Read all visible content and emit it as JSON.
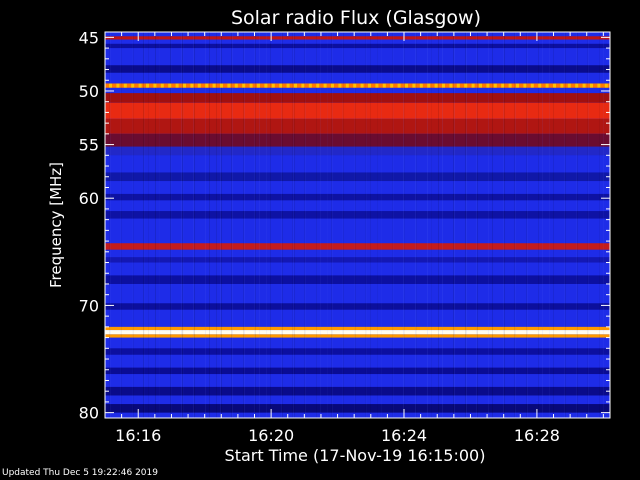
{
  "chart_data": {
    "type": "heatmap",
    "title": "Solar radio Flux (Glasgow)",
    "ylabel": "Frequency [MHz]",
    "xlabel": "Start Time (17-Nov-19 16:15:00)",
    "ylim": [
      44.5,
      80.5
    ],
    "y_ticks": [
      45,
      50,
      55,
      60,
      70,
      80
    ],
    "y_minor_ticks": [
      46,
      47,
      48,
      49,
      51,
      52,
      53,
      54,
      56,
      57,
      58,
      59,
      61,
      62,
      63,
      64,
      65,
      66,
      67,
      68,
      69,
      71,
      72,
      73,
      74,
      75,
      76,
      77,
      78,
      79
    ],
    "x_ticks": [
      "16:16",
      "16:20",
      "16:24",
      "16:28"
    ],
    "x_tick_minutes": [
      16.0,
      20.0,
      24.0,
      28.0
    ],
    "xlim_minutes": [
      15.0,
      30.2
    ],
    "background_color": "#1e2ce8",
    "bands": [
      {
        "from": 44.9,
        "to": 45.2,
        "color": "#c01515"
      },
      {
        "from": 45.6,
        "to": 46.0,
        "color": "#0c0fa0"
      },
      {
        "from": 47.6,
        "to": 48.3,
        "color": "#0a0c8c"
      },
      {
        "from": 49.3,
        "to": 49.7,
        "color": "#ff7a00"
      },
      {
        "from": 50.2,
        "to": 51.1,
        "color": "#a01010"
      },
      {
        "from": 51.1,
        "to": 52.6,
        "color": "#e82a12"
      },
      {
        "from": 52.6,
        "to": 54.0,
        "color": "#b01612"
      },
      {
        "from": 54.0,
        "to": 55.2,
        "color": "#6a0c30"
      },
      {
        "from": 55.2,
        "to": 56.0,
        "color": "#2228c8"
      },
      {
        "from": 57.6,
        "to": 58.4,
        "color": "#1018a8"
      },
      {
        "from": 59.6,
        "to": 60.2,
        "color": "#0e12a2"
      },
      {
        "from": 61.2,
        "to": 61.9,
        "color": "#0e12a4"
      },
      {
        "from": 64.2,
        "to": 64.8,
        "color": "#c41c1c"
      },
      {
        "from": 65.5,
        "to": 66.0,
        "color": "#1418b4"
      },
      {
        "from": 67.2,
        "to": 68.0,
        "color": "#0c10a0"
      },
      {
        "from": 69.8,
        "to": 70.4,
        "color": "#0c0f9c"
      },
      {
        "from": 72.0,
        "to": 72.3,
        "color": "#ff9a00"
      },
      {
        "from": 72.3,
        "to": 72.7,
        "color": "#fffdf0"
      },
      {
        "from": 72.7,
        "to": 73.0,
        "color": "#ff9a00"
      },
      {
        "from": 74.0,
        "to": 74.6,
        "color": "#0c0fa0"
      },
      {
        "from": 75.8,
        "to": 76.4,
        "color": "#0a0c94"
      },
      {
        "from": 77.6,
        "to": 78.4,
        "color": "#0a0b8a"
      },
      {
        "from": 79.2,
        "to": 80.0,
        "color": "#08097a"
      }
    ],
    "grid": false
  },
  "footer": {
    "updated": "Updated Thu Dec  5 19:22:46 2019"
  }
}
